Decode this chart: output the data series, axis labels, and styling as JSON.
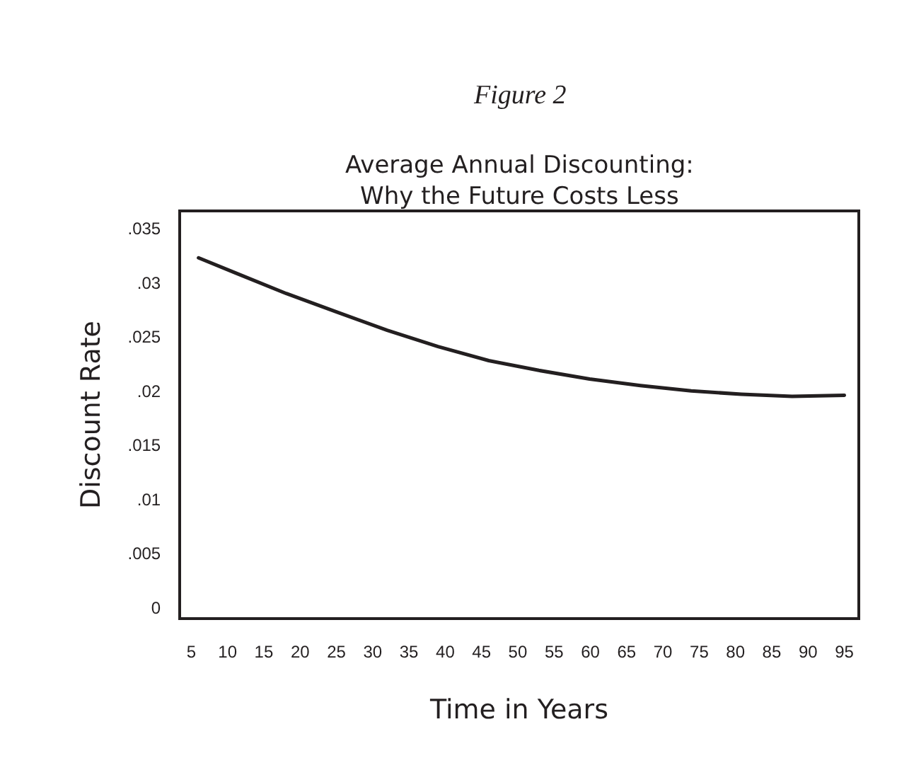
{
  "chart_data": {
    "type": "line",
    "title": "Figure 2",
    "subtitle": "Average Annual Discounting:\nWhy the Future Costs Less",
    "xlabel": "Time in Years",
    "ylabel": "Discount Rate",
    "x": [
      6,
      11.1,
      18.1,
      25,
      32,
      39,
      46,
      52.9,
      59.9,
      66.9,
      73.9,
      80.8,
      87.8,
      95
    ],
    "series": [
      {
        "color": "#231f20",
        "values": [
          0.0323,
          0.0309,
          0.029,
          0.0273,
          0.0256,
          0.0241,
          0.0228,
          0.0219,
          0.0211,
          0.0205,
          0.02,
          0.0197,
          0.0195,
          0.0196
        ]
      }
    ],
    "xlim": [
      3.6,
      96.8
    ],
    "xticks": [
      5,
      10,
      15,
      20,
      25,
      30,
      35,
      40,
      45,
      50,
      55,
      60,
      65,
      70,
      75,
      80,
      85,
      90,
      95
    ],
    "ylim": [
      -0.0009,
      0.0365
    ],
    "yticks": [
      {
        "value": 0,
        "label": "0"
      },
      {
        "value": 0.005,
        "label": ".005"
      },
      {
        "value": 0.01,
        "label": ".01"
      },
      {
        "value": 0.015,
        "label": ".015"
      },
      {
        "value": 0.02,
        "label": ".02"
      },
      {
        "value": 0.025,
        "label": ".025"
      },
      {
        "value": 0.03,
        "label": ".03"
      },
      {
        "value": 0.035,
        "label": ".035"
      }
    ],
    "marker": "none",
    "line_style": "solid"
  }
}
